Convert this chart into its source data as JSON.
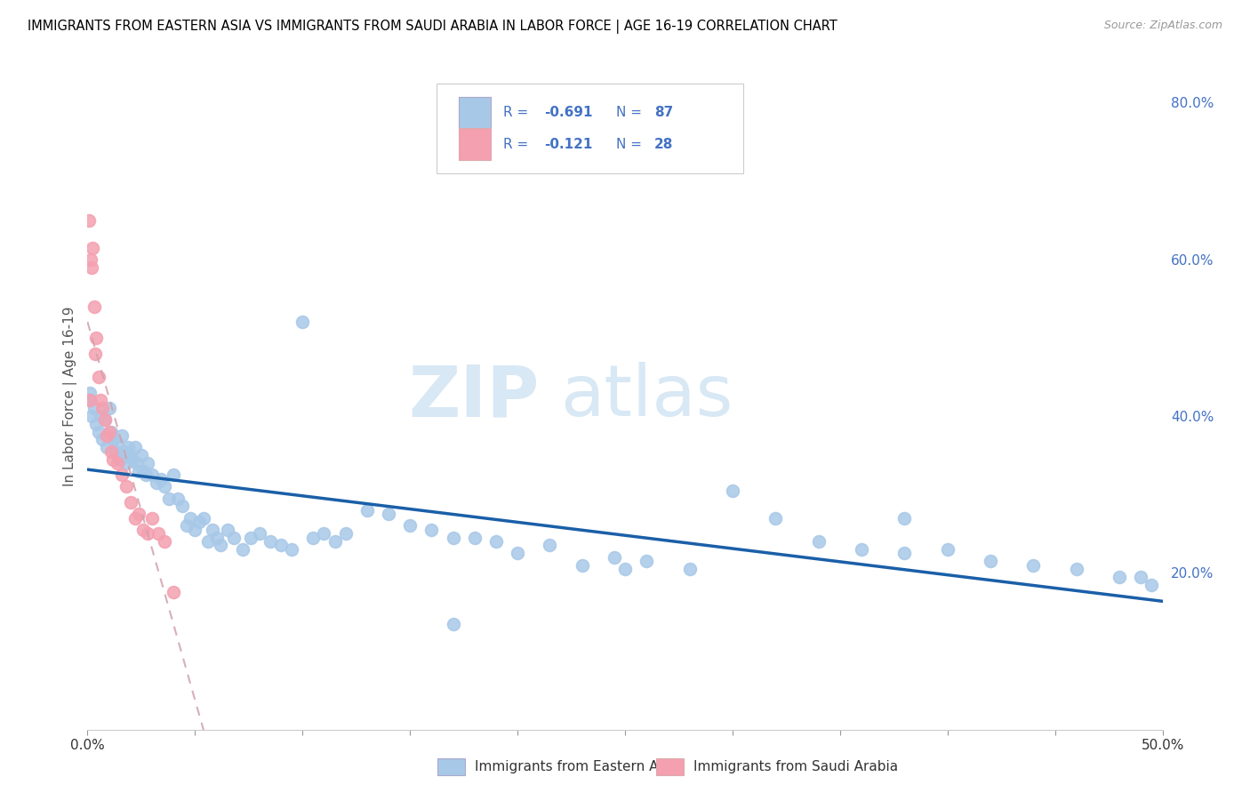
{
  "title": "IMMIGRANTS FROM EASTERN ASIA VS IMMIGRANTS FROM SAUDI ARABIA IN LABOR FORCE | AGE 16-19 CORRELATION CHART",
  "source": "Source: ZipAtlas.com",
  "ylabel": "In Labor Force | Age 16-19",
  "xlim": [
    0.0,
    0.5
  ],
  "ylim": [
    0.0,
    0.85
  ],
  "yticks_right": [
    0.2,
    0.4,
    0.6,
    0.8
  ],
  "ytick_labels_right": [
    "20.0%",
    "40.0%",
    "60.0%",
    "80.0%"
  ],
  "xtick_labels_show": [
    "0.0%",
    "50.0%"
  ],
  "xtick_vals_show": [
    0.0,
    0.5
  ],
  "xtick_minor": [
    0.05,
    0.1,
    0.15,
    0.2,
    0.25,
    0.3,
    0.35,
    0.4,
    0.45
  ],
  "legend_r1": "-0.691",
  "legend_n1": "87",
  "legend_r2": "-0.121",
  "legend_n2": "28",
  "color_blue": "#a8c8e8",
  "color_pink": "#f4a0b0",
  "line_blue": "#1a5fa8",
  "line_pink_r": 210,
  "line_pink_g": 160,
  "line_pink_b": 170,
  "watermark_zip_color": "#c8dff0",
  "watermark_atlas_color": "#c8dff0",
  "blue_x": [
    0.001,
    0.002,
    0.003,
    0.004,
    0.005,
    0.006,
    0.007,
    0.008,
    0.009,
    0.01,
    0.011,
    0.012,
    0.013,
    0.014,
    0.015,
    0.016,
    0.017,
    0.018,
    0.019,
    0.02,
    0.021,
    0.022,
    0.023,
    0.024,
    0.025,
    0.026,
    0.027,
    0.028,
    0.03,
    0.032,
    0.034,
    0.036,
    0.038,
    0.04,
    0.042,
    0.044,
    0.046,
    0.048,
    0.05,
    0.052,
    0.054,
    0.056,
    0.058,
    0.06,
    0.062,
    0.065,
    0.068,
    0.072,
    0.076,
    0.08,
    0.085,
    0.09,
    0.095,
    0.1,
    0.105,
    0.11,
    0.115,
    0.12,
    0.13,
    0.14,
    0.15,
    0.16,
    0.17,
    0.18,
    0.19,
    0.2,
    0.215,
    0.23,
    0.245,
    0.26,
    0.28,
    0.3,
    0.32,
    0.34,
    0.36,
    0.38,
    0.4,
    0.42,
    0.44,
    0.46,
    0.48,
    0.49,
    0.495,
    0.001,
    0.25,
    0.17,
    0.38
  ],
  "blue_y": [
    0.42,
    0.4,
    0.41,
    0.39,
    0.38,
    0.4,
    0.37,
    0.395,
    0.36,
    0.41,
    0.38,
    0.37,
    0.355,
    0.365,
    0.345,
    0.375,
    0.355,
    0.34,
    0.36,
    0.35,
    0.345,
    0.36,
    0.34,
    0.33,
    0.35,
    0.33,
    0.325,
    0.34,
    0.325,
    0.315,
    0.32,
    0.31,
    0.295,
    0.325,
    0.295,
    0.285,
    0.26,
    0.27,
    0.255,
    0.265,
    0.27,
    0.24,
    0.255,
    0.245,
    0.235,
    0.255,
    0.245,
    0.23,
    0.245,
    0.25,
    0.24,
    0.235,
    0.23,
    0.52,
    0.245,
    0.25,
    0.24,
    0.25,
    0.28,
    0.275,
    0.26,
    0.255,
    0.245,
    0.245,
    0.24,
    0.225,
    0.235,
    0.21,
    0.22,
    0.215,
    0.205,
    0.305,
    0.27,
    0.24,
    0.23,
    0.225,
    0.23,
    0.215,
    0.21,
    0.205,
    0.195,
    0.195,
    0.185,
    0.43,
    0.205,
    0.135,
    0.27
  ],
  "pink_x": [
    0.0005,
    0.001,
    0.0015,
    0.002,
    0.0025,
    0.003,
    0.0035,
    0.004,
    0.005,
    0.006,
    0.007,
    0.008,
    0.009,
    0.01,
    0.011,
    0.012,
    0.014,
    0.016,
    0.018,
    0.02,
    0.022,
    0.024,
    0.026,
    0.028,
    0.03,
    0.033,
    0.036,
    0.04
  ],
  "pink_y": [
    0.65,
    0.42,
    0.6,
    0.59,
    0.615,
    0.54,
    0.48,
    0.5,
    0.45,
    0.42,
    0.41,
    0.395,
    0.375,
    0.38,
    0.355,
    0.345,
    0.34,
    0.325,
    0.31,
    0.29,
    0.27,
    0.275,
    0.255,
    0.25,
    0.27,
    0.25,
    0.24,
    0.175
  ]
}
